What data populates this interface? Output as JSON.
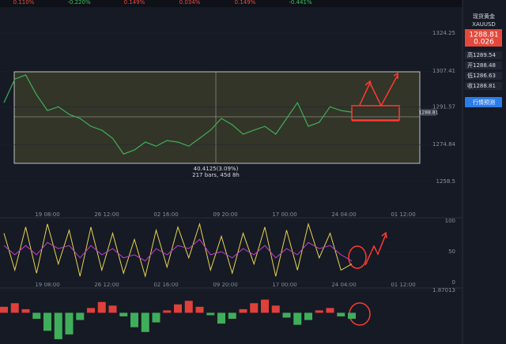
{
  "ticker_strip": [
    "0.110%",
    "-0.220%",
    "0.149%",
    "0.034%",
    "0.149%",
    "-0.441%"
  ],
  "sidebar": {
    "name": "现货黄金",
    "symbol": "XAUUSD",
    "price": "1288.81",
    "change": "0.026",
    "stats": [
      {
        "label": "高",
        "value": "1289.54"
      },
      {
        "label": "开",
        "value": "1288.48"
      },
      {
        "label": "低",
        "value": "1286.63"
      },
      {
        "label": "收",
        "value": "1288.81"
      }
    ],
    "button": "行情预测"
  },
  "measure": {
    "change": "40.4125(3.09%)",
    "span": "217 bars, 45d 8h"
  },
  "time_labels": [
    "19 08:00",
    "26 12:00",
    "02 16:00",
    "09 20:00",
    "17 00:00",
    "24 04:00",
    "01 12:00"
  ],
  "chart_data": [
    {
      "type": "line",
      "color": "#3fae5a",
      "values": [
        1293.4,
        1303.9,
        1305.7,
        1296.9,
        1289.9,
        1291.6,
        1288.2,
        1286.4,
        1282.9,
        1281.2,
        1277.6,
        1270.6,
        1272.4,
        1275.9,
        1274.1,
        1276.6,
        1275.9,
        1274.1,
        1277.6,
        1281.2,
        1286.4,
        1283.6,
        1279.4,
        1281.2,
        1282.9,
        1279.4,
        1286.4,
        1293.4,
        1282.9,
        1284.7,
        1291.6,
        1289.9,
        1289.2
      ],
      "ylim": [
        1244.4,
        1335.5
      ],
      "yticks": [
        1324.25,
        1307.41,
        1291.57,
        1274.84,
        1258.5
      ]
    },
    {
      "type": "line",
      "series": [
        {
          "color": "#e8d44d",
          "values": [
            80,
            20,
            90,
            15,
            95,
            30,
            85,
            10,
            90,
            20,
            80,
            15,
            70,
            10,
            85,
            25,
            90,
            40,
            95,
            20,
            75,
            15,
            80,
            30,
            90,
            10,
            85,
            20,
            95,
            40,
            80,
            20,
            30
          ]
        },
        {
          "color": "#c03fd0",
          "values": [
            60,
            45,
            60,
            45,
            65,
            55,
            60,
            40,
            60,
            45,
            55,
            40,
            45,
            35,
            55,
            45,
            60,
            55,
            70,
            45,
            50,
            40,
            55,
            45,
            60,
            40,
            55,
            45,
            65,
            55,
            60,
            45,
            35
          ]
        }
      ],
      "ylim": [
        0,
        100
      ],
      "yticks": [
        0,
        50,
        100
      ]
    },
    {
      "type": "bar",
      "values": [
        0.5,
        0.8,
        0.3,
        -0.5,
        -1.5,
        -2.2,
        -1.8,
        -0.6,
        0.4,
        0.9,
        0.6,
        -0.3,
        -1.2,
        -1.6,
        -0.8,
        0.2,
        0.7,
        1.0,
        0.5,
        -0.2,
        -0.9,
        -0.5,
        0.3,
        0.8,
        1.1,
        0.6,
        -0.4,
        -1.0,
        -0.6,
        0.2,
        0.4,
        -0.3,
        -0.5
      ],
      "ylim": [
        -2.6,
        1.87013
      ],
      "yticks": [
        1.87013
      ]
    }
  ]
}
